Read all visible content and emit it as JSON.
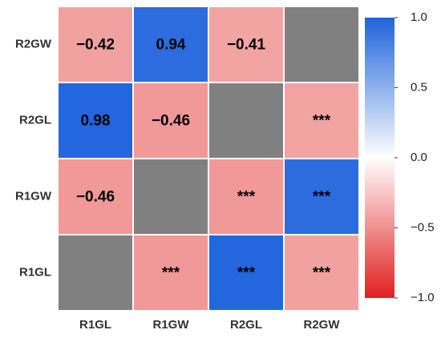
{
  "chart_data": {
    "type": "heatmap",
    "rows": [
      "R2GW",
      "R2GL",
      "R1GW",
      "R1GL"
    ],
    "columns": [
      "R1GL",
      "R1GW",
      "R2GL",
      "R2GW"
    ],
    "values": [
      [
        -0.42,
        0.94,
        -0.41,
        null
      ],
      [
        0.98,
        -0.46,
        null,
        -0.41
      ],
      [
        -0.46,
        null,
        -0.46,
        0.94
      ],
      [
        null,
        -0.46,
        0.98,
        -0.42
      ]
    ],
    "value_labels": [
      [
        "−0.42",
        "0.94",
        "−0.41",
        null
      ],
      [
        "0.98",
        "−0.46",
        null,
        "***"
      ],
      [
        "−0.46",
        null,
        "***",
        "***"
      ],
      [
        null,
        "***",
        "***",
        "***"
      ]
    ],
    "na_color": "#808080",
    "colormap": [
      "#e0201f",
      "#ffffff",
      "#1f63dc"
    ],
    "clim": [
      -1,
      1
    ],
    "cticks": [
      {
        "value": 1,
        "label": "1.0"
      },
      {
        "value": 0.5,
        "label": "0.5"
      },
      {
        "value": 0,
        "label": "0.0"
      },
      {
        "value": -0.5,
        "label": "−0.5"
      },
      {
        "value": -1,
        "label": "−1.0"
      }
    ]
  }
}
